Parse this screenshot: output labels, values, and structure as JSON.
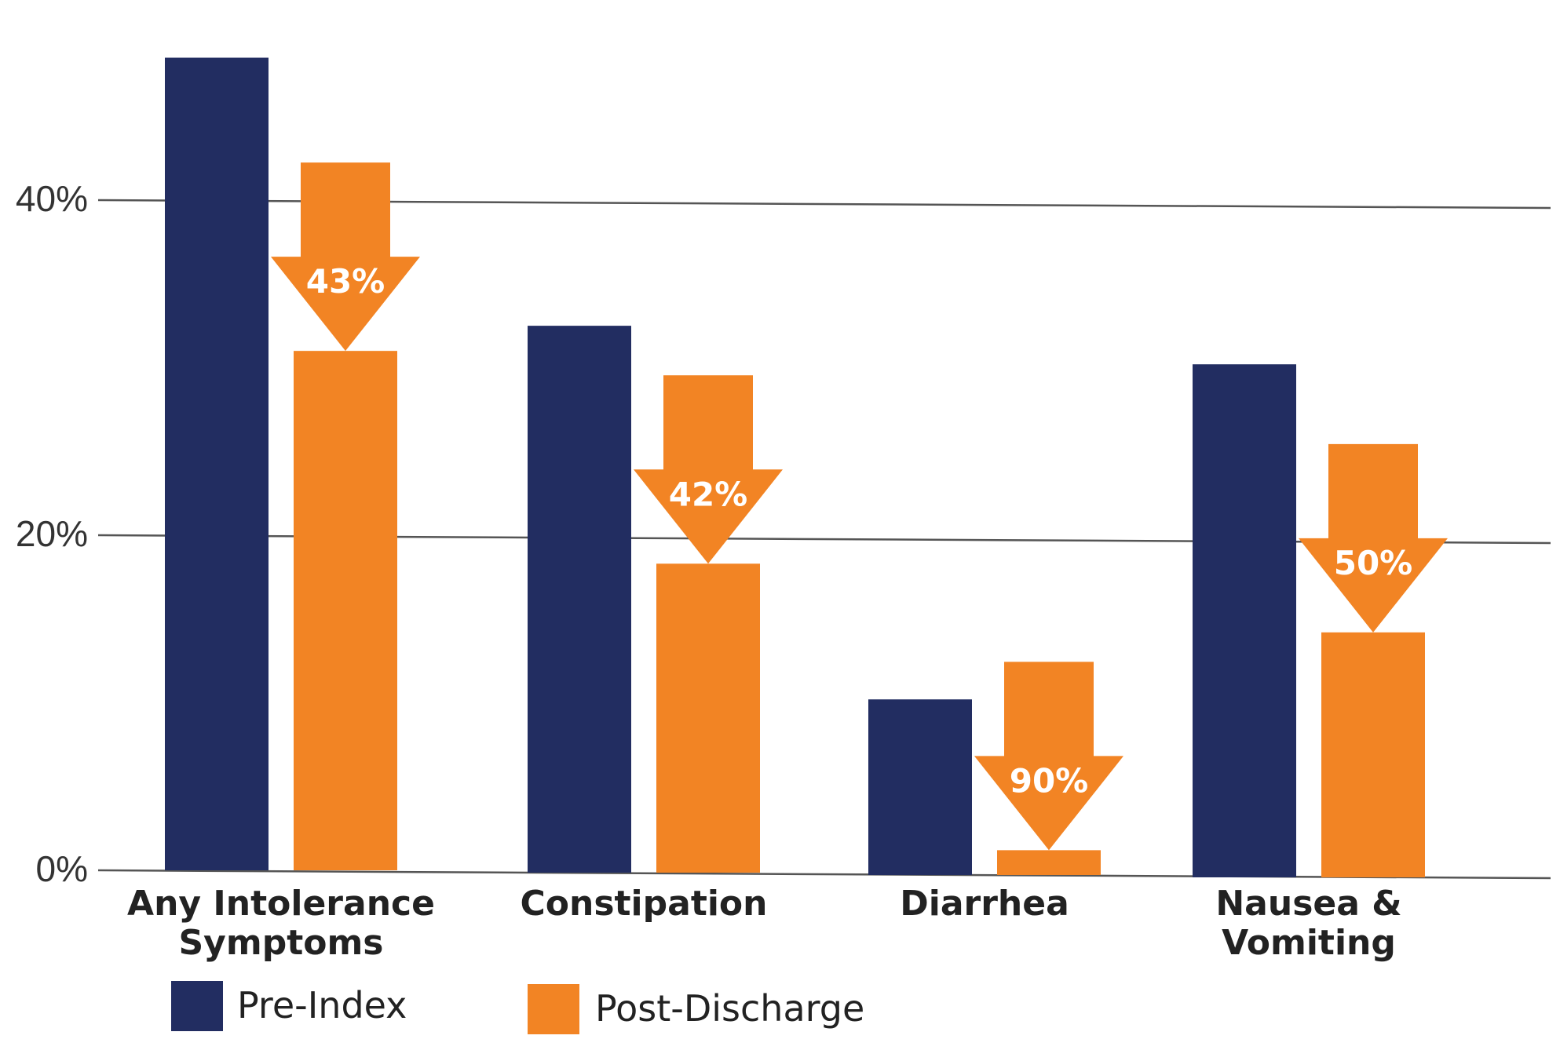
{
  "chart_data": {
    "type": "bar",
    "categories": [
      [
        "Any Intolerance",
        "Symptoms"
      ],
      [
        "Constipation"
      ],
      [
        "Diarrhea"
      ],
      [
        "Nausea &",
        "Vomiting"
      ]
    ],
    "series": [
      {
        "name": "Pre-Index",
        "color": "#222d61",
        "values": [
          48.5,
          32.5,
          10.2,
          30.2
        ]
      },
      {
        "name": "Post-Discharge",
        "color": "#f28424",
        "values": [
          31.0,
          18.3,
          1.2,
          14.2
        ]
      }
    ],
    "reductions": [
      "43%",
      "42%",
      "90%",
      "50%"
    ],
    "yticks": [
      {
        "value": 0,
        "label": "0%"
      },
      {
        "value": 20,
        "label": "20%"
      },
      {
        "value": 40,
        "label": "40%"
      }
    ],
    "ylim": [
      0,
      50
    ],
    "grid": true,
    "legend_position": "bottom-left"
  }
}
